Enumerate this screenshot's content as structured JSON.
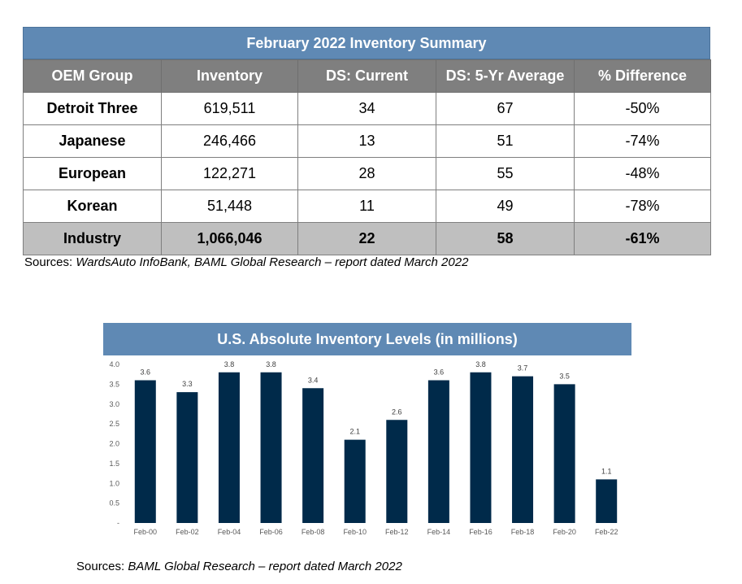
{
  "table": {
    "title": "February 2022 Inventory Summary",
    "headers": [
      "OEM Group",
      "Inventory",
      "DS: Current",
      "DS: 5-Yr Average",
      "% Difference"
    ],
    "rows": [
      [
        "Detroit Three",
        "619,511",
        "34",
        "67",
        "-50%"
      ],
      [
        "Japanese",
        "246,466",
        "13",
        "51",
        "-74%"
      ],
      [
        "European",
        "122,271",
        "28",
        "55",
        "-48%"
      ],
      [
        "Korean",
        "51,448",
        "11",
        "49",
        "-78%"
      ]
    ],
    "total": [
      "Industry",
      "1,066,046",
      "22",
      "58",
      "-61%"
    ],
    "source_prefix": "Sources: ",
    "source_italic": "WardsAuto InfoBank, BAML Global Research – report dated March 2022"
  },
  "chart_data": {
    "type": "bar",
    "title": "U.S. Absolute Inventory Levels (in millions)",
    "categories": [
      "Feb-00",
      "Feb-02",
      "Feb-04",
      "Feb-06",
      "Feb-08",
      "Feb-10",
      "Feb-12",
      "Feb-14",
      "Feb-16",
      "Feb-18",
      "Feb-20",
      "Feb-22"
    ],
    "values": [
      3.6,
      3.3,
      3.8,
      3.8,
      3.4,
      2.1,
      2.6,
      3.6,
      3.8,
      3.7,
      3.5,
      1.1
    ],
    "ylim": [
      0,
      4.0
    ],
    "yticks": [
      "-",
      "0.5",
      "1.0",
      "1.5",
      "2.0",
      "2.5",
      "3.0",
      "3.5",
      "4.0"
    ],
    "bar_color": "#002a4a",
    "grid": false
  },
  "chart_source_prefix": "Sources: ",
  "chart_source_italic": "BAML Global Research – report dated March 2022"
}
